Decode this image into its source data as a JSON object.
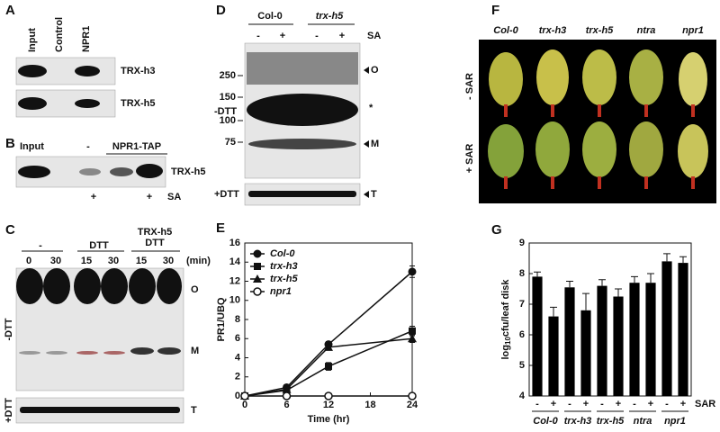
{
  "panels": {
    "A": {
      "label": "A",
      "columns": [
        "Input",
        "Control",
        "NPR1"
      ],
      "rows": [
        "TRX-h3",
        "TRX-h5"
      ]
    },
    "B": {
      "label": "B",
      "input": "Input",
      "minus": "-",
      "group": "NPR1-TAP",
      "band": "TRX-h5",
      "sa_marks": [
        "+",
        "+"
      ],
      "sa": "SA"
    },
    "C": {
      "label": "C",
      "group_headers": [
        "-",
        "DTT",
        "TRX-h5",
        "DTT"
      ],
      "times": [
        "0",
        "30",
        "15",
        "30",
        "15",
        "30"
      ],
      "unit": "(min)",
      "bands": [
        "O",
        "M",
        "T"
      ],
      "conditions": [
        "-DTT",
        "+DTT"
      ]
    },
    "D": {
      "label": "D",
      "lines": [
        "Col-0",
        "trx-h5"
      ],
      "treatments": [
        "-",
        "+",
        "-",
        "+"
      ],
      "sa": "SA",
      "markers": [
        250,
        150,
        100,
        75
      ],
      "conditions": [
        "-DTT",
        "+DTT"
      ],
      "bands": [
        "O",
        "*",
        "M",
        "T"
      ]
    },
    "F": {
      "label": "F",
      "lines": [
        "Col-0",
        "trx-h3",
        "trx-h5",
        "ntra",
        "npr1"
      ],
      "conditions": [
        "- SAR",
        "+ SAR"
      ]
    }
  },
  "chart_data": [
    {
      "type": "line",
      "panel": "E",
      "ylabel": "PR1/UBQ",
      "xlabel": "Time (hr)",
      "x": [
        0,
        6,
        12,
        24
      ],
      "xlim": [
        0,
        24
      ],
      "xticks": [
        0,
        6,
        12,
        18,
        24
      ],
      "ylim": [
        0,
        16
      ],
      "yticks": [
        0,
        2,
        4,
        6,
        8,
        10,
        12,
        14,
        16
      ],
      "series": [
        {
          "name": "Col-0",
          "color": "#111111",
          "marker": "filled-circle",
          "values": [
            0,
            0.9,
            5.4,
            13.0
          ],
          "errors": [
            0,
            0.1,
            0.3,
            0.6
          ]
        },
        {
          "name": "trx-h3",
          "color": "#111111",
          "marker": "filled-square",
          "values": [
            0,
            0.6,
            3.1,
            6.8
          ],
          "errors": [
            0,
            0.1,
            0.4,
            0.5
          ]
        },
        {
          "name": "trx-h5",
          "color": "#111111",
          "marker": "filled-triangle",
          "values": [
            0,
            0.7,
            5.1,
            6.0
          ],
          "errors": [
            0,
            0.1,
            0.3,
            0.4
          ]
        },
        {
          "name": "npr1",
          "color": "#111111",
          "marker": "open-circle",
          "values": [
            0,
            0,
            0,
            0
          ],
          "errors": [
            0,
            0,
            0,
            0
          ]
        }
      ]
    },
    {
      "type": "bar",
      "panel": "G",
      "ylabel": [
        "log",
        "10",
        "cfu/leaf disk"
      ],
      "color": "#000000",
      "categories": [
        "-",
        "+",
        "-",
        "+",
        "-",
        "+",
        "-",
        "+",
        "-",
        "+"
      ],
      "groups": [
        "Col-0",
        "trx-h3",
        "trx-h5",
        "ntra",
        "npr1"
      ],
      "category_axis_label": "SAR",
      "values": [
        7.9,
        6.6,
        7.55,
        6.8,
        7.6,
        7.25,
        7.7,
        7.7,
        8.4,
        8.35
      ],
      "errors": [
        0.15,
        0.3,
        0.2,
        0.55,
        0.2,
        0.25,
        0.2,
        0.3,
        0.25,
        0.2
      ],
      "ylim": [
        4,
        9
      ],
      "yticks": [
        4,
        5,
        6,
        7,
        8,
        9
      ]
    }
  ]
}
